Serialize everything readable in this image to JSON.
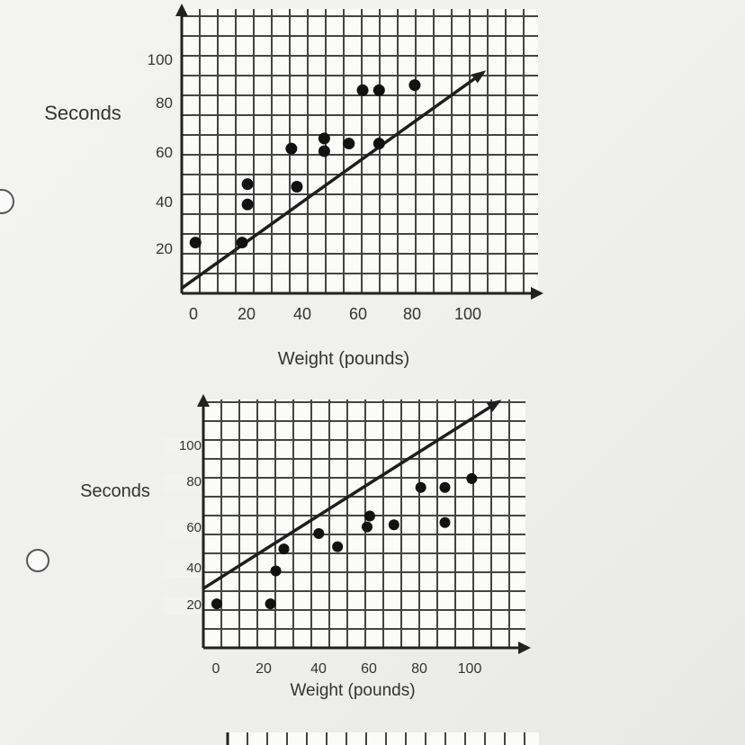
{
  "chart_data": [
    {
      "type": "scatter",
      "title": "",
      "xlabel": "Weight (pounds)",
      "ylabel": "Seconds",
      "xlim": [
        0,
        130
      ],
      "ylim": [
        0,
        112
      ],
      "x_ticks": [
        "0",
        "20",
        "40",
        "60",
        "80",
        "100"
      ],
      "y_ticks": [
        "20",
        "40",
        "60",
        "80",
        "100"
      ],
      "grid": true,
      "points": {
        "x": [
          5,
          22,
          24,
          24,
          40,
          42,
          52,
          52,
          61,
          66,
          72,
          72,
          85
        ],
        "y": [
          20,
          20,
          43,
          35,
          57,
          42,
          61,
          56,
          59,
          80,
          80,
          59,
          82
        ]
      },
      "trend_line": {
        "x": [
          0,
          110
        ],
        "y": [
          2,
          87
        ]
      }
    },
    {
      "type": "scatter",
      "title": "",
      "xlabel": "Weight (pounds)",
      "ylabel": "Seconds",
      "xlim": [
        0,
        120
      ],
      "ylim": [
        0,
        113
      ],
      "x_ticks": [
        "0",
        "20",
        "40",
        "60",
        "80",
        "100"
      ],
      "y_ticks": [
        "20",
        "40",
        "60",
        "80",
        "100"
      ],
      "grid": true,
      "points": {
        "x": [
          5,
          25,
          27,
          30,
          43,
          50,
          62,
          61,
          71,
          81,
          90,
          90,
          100
        ],
        "y": [
          20,
          20,
          35,
          45,
          52,
          46,
          60,
          55,
          56,
          73,
          73,
          57,
          77
        ]
      },
      "trend_line": {
        "x": [
          0,
          110
        ],
        "y": [
          27,
          112
        ]
      }
    }
  ],
  "options": {
    "a_selected": false,
    "b_selected": false
  }
}
